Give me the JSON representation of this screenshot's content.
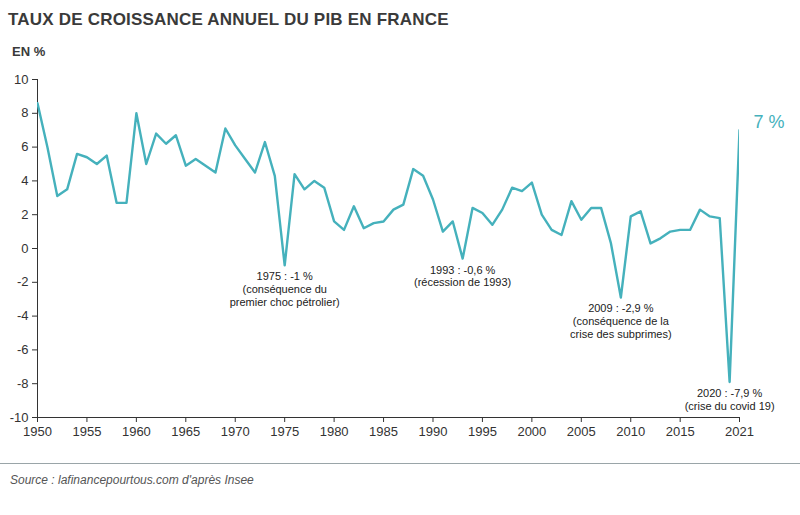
{
  "chart_data": {
    "type": "line",
    "title": "TAUX DE CROISSANCE ANNUEL DU PIB EN FRANCE",
    "subtitle": "EN %",
    "source": "Source : lafinancepourtous.com d'après Insee",
    "x": [
      1950,
      1951,
      1952,
      1953,
      1954,
      1955,
      1956,
      1957,
      1958,
      1959,
      1960,
      1961,
      1962,
      1963,
      1964,
      1965,
      1966,
      1967,
      1968,
      1969,
      1970,
      1971,
      1972,
      1973,
      1974,
      1975,
      1976,
      1977,
      1978,
      1979,
      1980,
      1981,
      1982,
      1983,
      1984,
      1985,
      1986,
      1987,
      1988,
      1989,
      1990,
      1991,
      1992,
      1993,
      1994,
      1995,
      1996,
      1997,
      1998,
      1999,
      2000,
      2001,
      2002,
      2003,
      2004,
      2005,
      2006,
      2007,
      2008,
      2009,
      2010,
      2011,
      2012,
      2013,
      2014,
      2015,
      2016,
      2017,
      2018,
      2019,
      2020,
      2021
    ],
    "values": [
      8.6,
      6.0,
      3.1,
      3.5,
      5.6,
      5.4,
      5.0,
      5.5,
      2.7,
      2.7,
      8.0,
      5.0,
      6.8,
      6.2,
      6.7,
      4.9,
      5.3,
      4.9,
      4.5,
      7.1,
      6.1,
      5.3,
      4.5,
      6.3,
      4.3,
      -1.0,
      4.4,
      3.5,
      4.0,
      3.6,
      1.6,
      1.1,
      2.5,
      1.2,
      1.5,
      1.6,
      2.3,
      2.6,
      4.7,
      4.3,
      2.9,
      1.0,
      1.6,
      -0.6,
      2.4,
      2.1,
      1.4,
      2.3,
      3.6,
      3.4,
      3.9,
      2.0,
      1.1,
      0.8,
      2.8,
      1.7,
      2.4,
      2.4,
      0.3,
      -2.9,
      1.9,
      2.2,
      0.3,
      0.6,
      1.0,
      1.1,
      1.1,
      2.3,
      1.9,
      1.8,
      -7.9,
      7.0
    ],
    "color": "#45b1bc",
    "xlim": [
      1950,
      2021
    ],
    "xticks": [
      1950,
      1955,
      1960,
      1965,
      1970,
      1975,
      1980,
      1985,
      1990,
      1995,
      2000,
      2005,
      2010,
      2015,
      2021
    ],
    "ylim": [
      -10,
      10
    ],
    "yticks": [
      -10,
      -8,
      -6,
      -4,
      -2,
      0,
      2,
      4,
      6,
      8,
      10
    ],
    "grid": false,
    "annotations": [
      {
        "x": 1975,
        "text": "1975 : -1 %\n(conséquence du\npremier choc pétrolier)"
      },
      {
        "x": 1993,
        "text": "1993 : -0,6 %\n(récession de 1993)"
      },
      {
        "x": 2009,
        "text": "2009 : -2,9 %\n(conséquence de la\ncrise des subprimes)"
      },
      {
        "x": 2020,
        "text": "2020 : -7,9 %\n(crise du covid 19)"
      }
    ],
    "end_label": "7 %"
  }
}
